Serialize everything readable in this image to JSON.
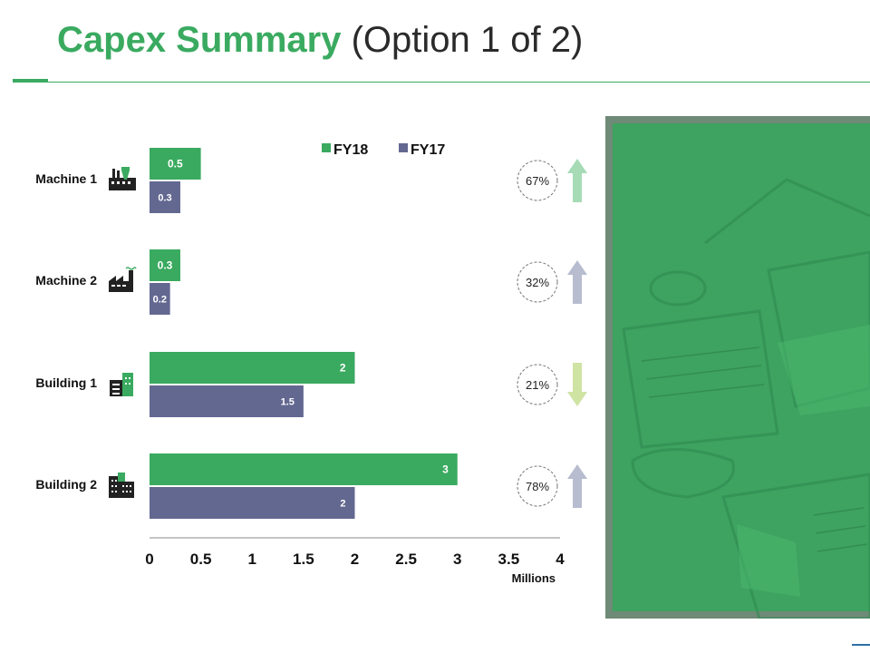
{
  "slide": {
    "title_main": "Capex Summary",
    "title_sub": "(Option 1 of 2)",
    "accent_color": "#3aaa60"
  },
  "chart_data": {
    "type": "bar",
    "orientation": "horizontal",
    "categories": [
      "Machine 1",
      "Machine 2",
      "Building 1",
      "Building 2"
    ],
    "category_icons": [
      "factory-icon",
      "factory-smoke-icon",
      "office-building-icon",
      "city-buildings-icon"
    ],
    "series": [
      {
        "name": "FY18",
        "values": [
          0.5,
          0.3,
          2,
          3
        ],
        "labels": [
          "0.5",
          "0.3",
          "2",
          "3"
        ],
        "color": "#3aaa60"
      },
      {
        "name": "FY17",
        "values": [
          0.3,
          0.2,
          1.5,
          2
        ],
        "labels": [
          "0.3",
          "0.2",
          "1.5",
          "2"
        ],
        "color": "#636891"
      }
    ],
    "xlim": [
      0,
      4
    ],
    "xticks": [
      "0",
      "0.5",
      "1",
      "1.5",
      "2",
      "2.5",
      "3",
      "3.5",
      "4"
    ],
    "xlabel": "Millions",
    "ylabel": "",
    "grid": false,
    "legend_position": "top"
  },
  "changes": [
    {
      "label": "67%",
      "direction": "up",
      "color": "#a6dbb5"
    },
    {
      "label": "32%",
      "direction": "up",
      "color": "#b7bccf"
    },
    {
      "label": "21%",
      "direction": "down",
      "color": "#cfe3a3"
    },
    {
      "label": "78%",
      "direction": "up",
      "color": "#b7bccf"
    }
  ],
  "photo": {
    "overlay_color": "#3aaa60",
    "icon": "desk-photo-image"
  }
}
